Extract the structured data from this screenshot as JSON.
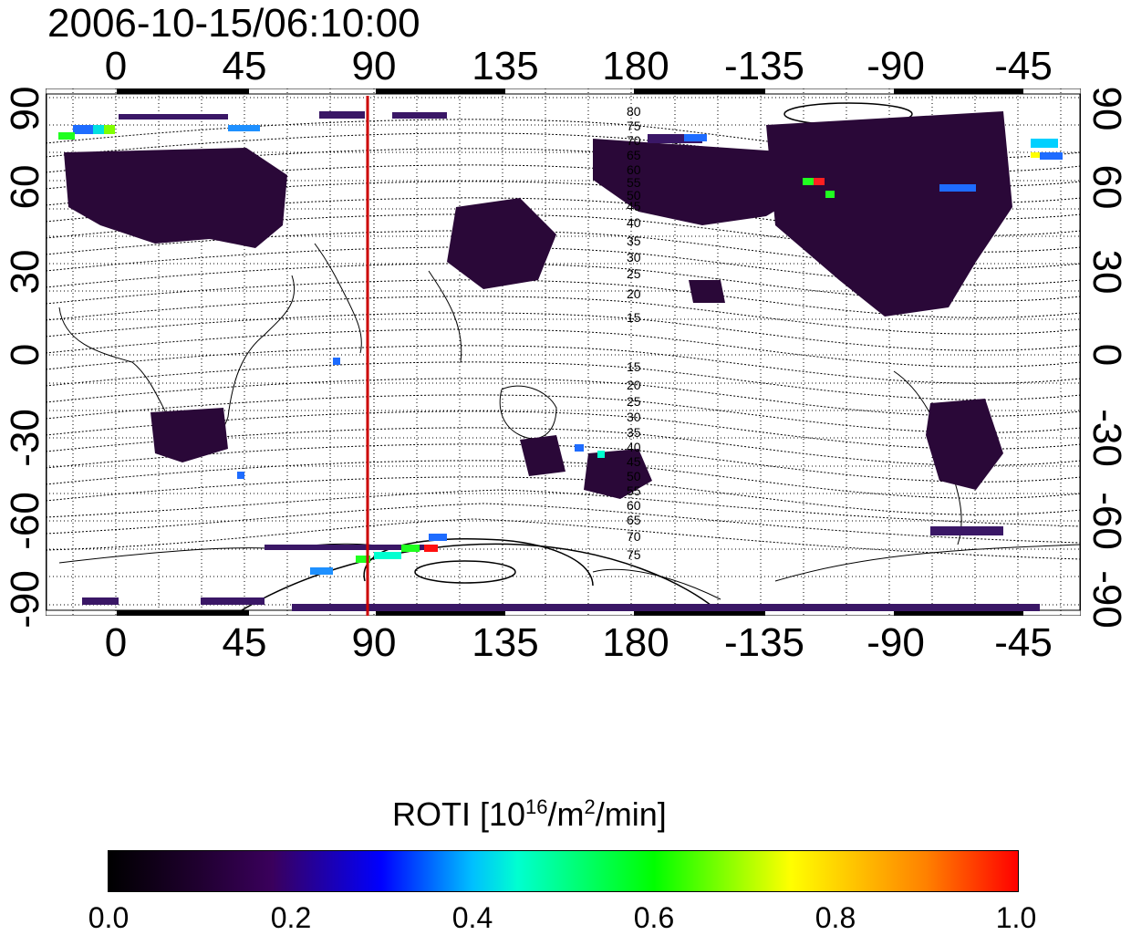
{
  "title": "2006-10-15/06:10:00",
  "x_ticks": [
    "0",
    "45",
    "90",
    "135",
    "180",
    "-135",
    "-90",
    "-45"
  ],
  "y_ticks": [
    "90",
    "60",
    "30",
    "0",
    "-30",
    "-60",
    "-90"
  ],
  "contour_labels": [
    "80",
    "75",
    "70",
    "65",
    "60",
    "55",
    "50",
    "45",
    "40",
    "35",
    "30",
    "25",
    "20",
    "15",
    "15",
    "20",
    "25",
    "30",
    "35",
    "40",
    "45",
    "50",
    "55",
    "60",
    "65",
    "70",
    "75"
  ],
  "highlight_line": {
    "longitude": 90,
    "color": "#cc0000"
  },
  "colorbar": {
    "title_prefix": "ROTI  [10",
    "title_sup1": "16",
    "title_mid": "/m",
    "title_sup2": "2",
    "title_suffix": "/min]",
    "ticks": [
      "0.0",
      "0.2",
      "0.4",
      "0.6",
      "0.8",
      "1.0"
    ],
    "range": [
      0.0,
      1.0
    ]
  },
  "colors": {
    "low": "#2a0838",
    "mid": "#3c1a6c",
    "blue": "#1e6cff",
    "cyan": "#00c8ff",
    "green": "#20ff20",
    "red": "#ff1010"
  }
}
